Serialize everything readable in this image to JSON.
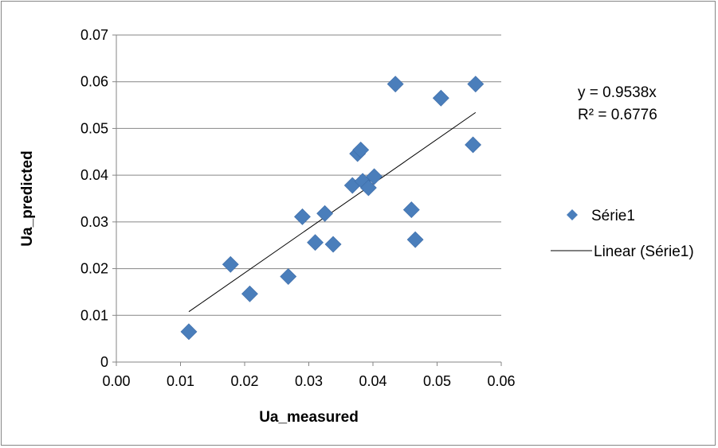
{
  "chart_data": {
    "type": "scatter",
    "title": "",
    "xlabel": "Ua_measured",
    "ylabel": "Ua_predicted",
    "xlim": [
      0,
      0.06
    ],
    "ylim": [
      0,
      0.07
    ],
    "x_ticks": [
      "0.00",
      "0.01",
      "0.02",
      "0.03",
      "0.04",
      "0.05",
      "0.06"
    ],
    "y_ticks": [
      "0",
      "0.01",
      "0.02",
      "0.03",
      "0.04",
      "0.05",
      "0.06",
      "0.07"
    ],
    "grid": "horizontal",
    "legend_position": "right",
    "series": [
      {
        "name": "Série1",
        "marker": "diamond",
        "color": "#4a7ebb",
        "points": [
          [
            0.0113,
            0.0065
          ],
          [
            0.0178,
            0.0209
          ],
          [
            0.0208,
            0.0146
          ],
          [
            0.0268,
            0.0183
          ],
          [
            0.029,
            0.0311
          ],
          [
            0.031,
            0.0256
          ],
          [
            0.0325,
            0.0318
          ],
          [
            0.0338,
            0.0252
          ],
          [
            0.0368,
            0.0378
          ],
          [
            0.0376,
            0.0446
          ],
          [
            0.0381,
            0.0454
          ],
          [
            0.0384,
            0.0387
          ],
          [
            0.0393,
            0.0373
          ],
          [
            0.0402,
            0.0397
          ],
          [
            0.0435,
            0.0595
          ],
          [
            0.046,
            0.0326
          ],
          [
            0.0466,
            0.0262
          ],
          [
            0.0506,
            0.0565
          ],
          [
            0.0556,
            0.0465
          ],
          [
            0.056,
            0.0595
          ]
        ]
      }
    ],
    "trendline": {
      "name": "Linear (Série1)",
      "type": "linear",
      "color": "#000000",
      "slope": 0.9538,
      "x_range": [
        0.0113,
        0.056
      ]
    },
    "annotations": {
      "equation": "y = 0.9538x",
      "r_squared": "R² = 0.6776"
    }
  }
}
